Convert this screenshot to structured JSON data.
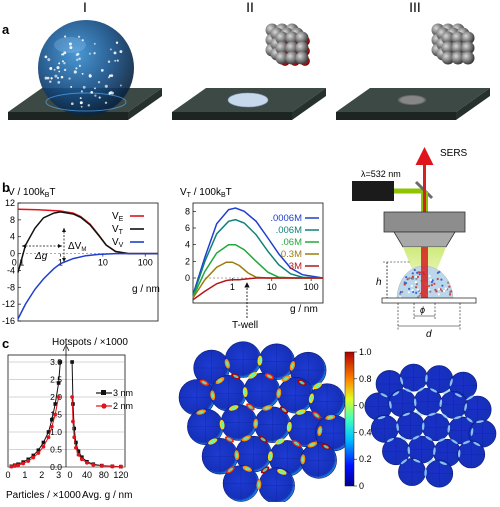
{
  "panels": {
    "a": "a",
    "b": "b",
    "c": "c"
  },
  "columns": [
    "I",
    "II",
    "III"
  ],
  "colors": {
    "slab": "#2e3a36",
    "red": "#e0141b",
    "black": "#111111",
    "blue": "#1f3fcf",
    "green": "#22a83c",
    "olive": "#9a7d10",
    "darkred": "#b3171a",
    "laser_green": "#8fc400",
    "laser_red": "#d62020"
  },
  "chart_data": [
    {
      "type": "line",
      "title": "V / 100k_BT",
      "title_main": "V / 100k",
      "title_sub": "B",
      "title_tail": "T",
      "xlabel": "g / nm",
      "xscale": "log",
      "xlim": [
        0.1,
        200
      ],
      "ylim": [
        -16,
        12
      ],
      "yticks": [
        12,
        8,
        4,
        0,
        -4,
        -8,
        -12,
        -16
      ],
      "xticks": [
        "0.1",
        "1",
        "10",
        "100"
      ],
      "annotations": {
        "dg": "Δg",
        "dvm": "ΔV",
        "dvm_sub": "M"
      },
      "series": [
        {
          "name": "V_E",
          "name_main": "V",
          "name_sub": "E",
          "color": "#e0141b",
          "x": [
            0.1,
            0.3,
            1,
            2,
            3,
            5,
            8,
            12,
            20,
            40,
            100,
            200
          ],
          "y": [
            10.5,
            10.4,
            10.1,
            9.6,
            8.8,
            7.0,
            4.4,
            2.0,
            0.5,
            0.0,
            0.0,
            0.0
          ]
        },
        {
          "name": "V_T",
          "name_main": "V",
          "name_sub": "T",
          "color": "#111111",
          "x": [
            0.1,
            0.15,
            0.25,
            0.4,
            0.7,
            1,
            2,
            3,
            5,
            8,
            12,
            20,
            40,
            100,
            200
          ],
          "y": [
            -4.5,
            2.0,
            6.0,
            8.5,
            9.6,
            9.9,
            9.4,
            8.6,
            6.8,
            4.3,
            2.0,
            0.5,
            0.0,
            0.0,
            0.0
          ]
        },
        {
          "name": "V_V",
          "name_main": "V",
          "name_sub": "V",
          "color": "#1f3fcf",
          "x": [
            0.1,
            0.15,
            0.25,
            0.4,
            0.7,
            1,
            2,
            4,
            8,
            20,
            50,
            200
          ],
          "y": [
            -15.5,
            -12.0,
            -8.5,
            -6.0,
            -3.6,
            -2.4,
            -1.2,
            -0.5,
            -0.2,
            0.0,
            0.0,
            0.0
          ]
        }
      ]
    },
    {
      "type": "line",
      "title": "V_T / 100k_BT",
      "title_main": "V",
      "title_sub1": "T",
      "title_mid": " / 100k",
      "title_sub2": "B",
      "title_tail": "T",
      "xlabel": "g / nm",
      "xscale": "log",
      "xlim": [
        0.1,
        200
      ],
      "ylim": [
        -3,
        9
      ],
      "yticks": [
        8,
        6,
        4,
        2,
        0
      ],
      "xticks": [
        "1",
        "10",
        "100"
      ],
      "annotation": "T-well",
      "series": [
        {
          "name": ".0006M",
          "color": "#1f3fcf",
          "x": [
            0.1,
            0.2,
            0.4,
            0.8,
            1.2,
            2,
            4,
            8,
            15,
            30,
            60,
            200
          ],
          "y": [
            -2.0,
            2.5,
            6.5,
            8.2,
            8.4,
            8.0,
            6.8,
            4.8,
            2.9,
            1.2,
            0.4,
            0.0
          ]
        },
        {
          "name": ".006M",
          "color": "#11807a",
          "x": [
            0.1,
            0.2,
            0.4,
            0.8,
            1.2,
            2,
            4,
            8,
            15,
            30,
            60,
            200
          ],
          "y": [
            -2.2,
            2.0,
            5.3,
            6.8,
            7.0,
            6.6,
            5.2,
            3.2,
            1.6,
            0.5,
            0.1,
            0.0
          ]
        },
        {
          "name": ".06M",
          "color": "#22a83c",
          "x": [
            0.1,
            0.2,
            0.4,
            0.8,
            1.2,
            2,
            4,
            8,
            15,
            40,
            200
          ],
          "y": [
            -2.3,
            0.8,
            3.0,
            4.0,
            4.0,
            3.4,
            2.0,
            0.7,
            0.1,
            0.0,
            0.0
          ]
        },
        {
          "name": "0.3M",
          "color": "#9a7d10",
          "x": [
            0.1,
            0.2,
            0.4,
            0.7,
            1.0,
            1.5,
            2.5,
            4,
            8,
            20,
            200
          ],
          "y": [
            -2.4,
            -0.2,
            1.3,
            1.9,
            1.9,
            1.5,
            0.6,
            0.1,
            0.0,
            0.0,
            0.0
          ]
        },
        {
          "name": "3M",
          "color": "#b3171a",
          "x": [
            0.1,
            0.2,
            0.4,
            0.7,
            1.0,
            1.5,
            2.5,
            4,
            8,
            20,
            200
          ],
          "y": [
            -2.6,
            -1.6,
            -0.7,
            -0.3,
            -0.2,
            -0.2,
            -0.1,
            0.0,
            0.0,
            0.0,
            0.0
          ]
        }
      ]
    },
    {
      "type": "bar",
      "title": "Hotspots / ×1000",
      "xlabel_left": "Particles / ×1000",
      "xlabel_right": "Avg. g / nm",
      "yticks": [
        "0.0",
        "0.5",
        "1.0",
        "1.5",
        "2.0",
        "2.5",
        "3.0"
      ],
      "xticks_left": [
        "0",
        "1",
        "2",
        "3"
      ],
      "xticks_right": [
        "0",
        "40",
        "80",
        "120"
      ],
      "ylim": [
        0,
        3.2
      ],
      "series": [
        {
          "name": "3 nm",
          "color": "#111111",
          "particles": [
            0.2,
            0.4,
            0.6,
            0.9,
            1.2,
            1.5,
            1.8,
            2.1,
            2.4,
            2.6,
            2.8,
            3.0,
            3.1
          ],
          "hotspots_left": [
            0.02,
            0.05,
            0.08,
            0.14,
            0.22,
            0.33,
            0.48,
            0.7,
            1.0,
            1.35,
            1.8,
            2.4,
            3.0
          ],
          "gap": [
            5,
            7,
            10,
            14,
            20,
            28,
            40,
            55,
            75,
            100,
            120
          ],
          "hotspots_right": [
            3.0,
            1.8,
            1.1,
            0.7,
            0.45,
            0.28,
            0.15,
            0.08,
            0.04,
            0.02,
            0.01
          ]
        },
        {
          "name": "2 nm",
          "color": "#e0141b",
          "particles": [
            0.2,
            0.4,
            0.6,
            0.9,
            1.2,
            1.5,
            1.8,
            2.1,
            2.4,
            2.6,
            2.8,
            3.0
          ],
          "hotspots_left": [
            0.01,
            0.03,
            0.05,
            0.1,
            0.17,
            0.27,
            0.4,
            0.58,
            0.85,
            1.15,
            1.5,
            2.0
          ],
          "gap": [
            5,
            7,
            10,
            14,
            20,
            28,
            40,
            55,
            75,
            100,
            120
          ],
          "hotspots_right": [
            2.0,
            1.3,
            0.85,
            0.55,
            0.35,
            0.22,
            0.12,
            0.06,
            0.03,
            0.015,
            0.01
          ]
        }
      ]
    },
    {
      "type": "heatmap",
      "colorbar_ticks": [
        "1.0",
        "0.8",
        "0.6",
        "0.4",
        "0.2",
        "0"
      ],
      "colorbar_range": [
        0,
        1
      ]
    }
  ],
  "setup": {
    "laser": "λ=532 nm",
    "sers": "SERS",
    "h": "h",
    "phi": "ϕ",
    "d": "d"
  }
}
